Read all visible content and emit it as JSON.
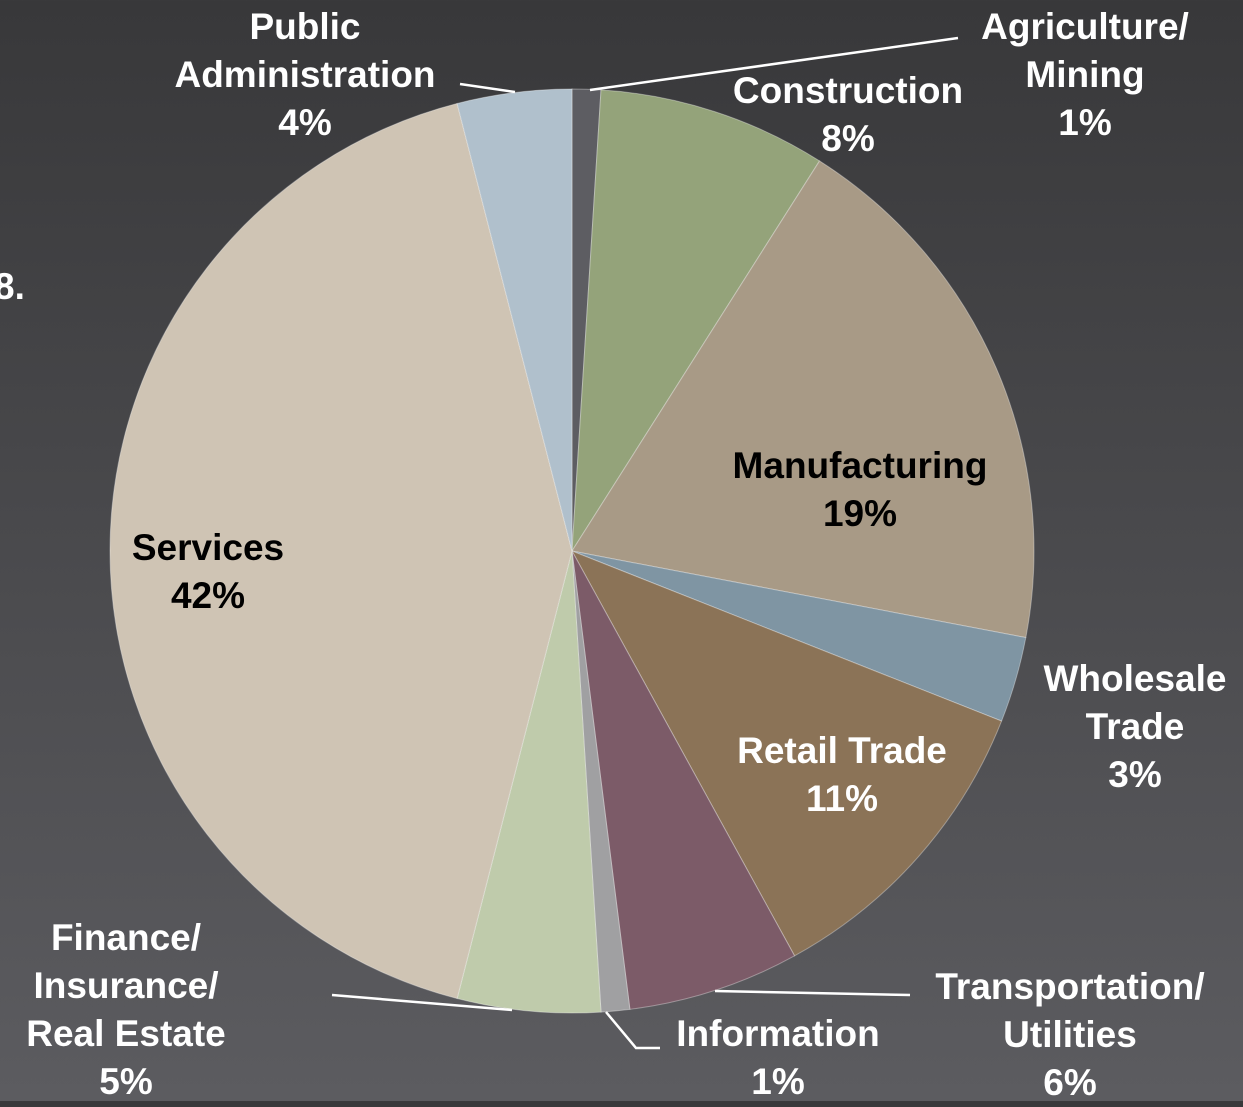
{
  "chart_data": {
    "type": "pie",
    "annotation": "8.",
    "categories": [
      "Agriculture/\nMining",
      "Construction",
      "Manufacturing",
      "Wholesale\nTrade",
      "Retail Trade",
      "Transportation/\nUtilities",
      "Information",
      "Finance/\nInsurance/\nReal Estate",
      "Services",
      "Public\nAdministration"
    ],
    "values": [
      1,
      8,
      19,
      3,
      11,
      6,
      1,
      5,
      42,
      4
    ],
    "value_labels": [
      "1%",
      "8%",
      "19%",
      "3%",
      "11%",
      "6%",
      "1%",
      "5%",
      "42%",
      "4%"
    ],
    "colors": [
      "#5d5d62",
      "#94a37a",
      "#a89a86",
      "#7f95a3",
      "#8b7357",
      "#7c5b68",
      "#a0a0a2",
      "#bfcbab",
      "#cfc4b4",
      "#b0c0cc"
    ]
  }
}
